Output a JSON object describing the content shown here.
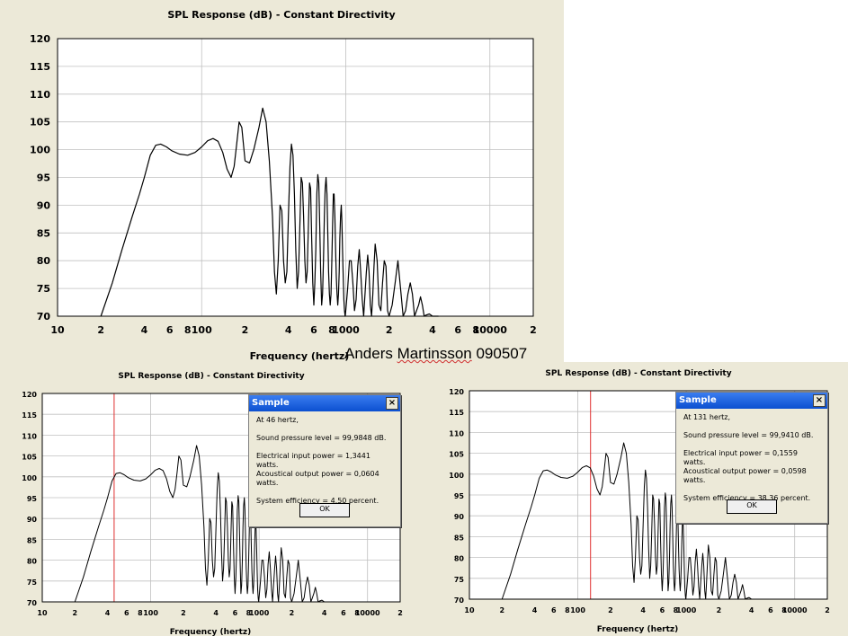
{
  "credit": {
    "prefix": "Anders ",
    "underlined": "Martinsson",
    "suffix": " 090507"
  },
  "chart_data": [
    {
      "type": "line",
      "title": "SPL Response (dB) - Constant Directivity",
      "xlabel": "Frequency (hertz)",
      "ylabel": "",
      "xscale": "log",
      "xlim": [
        10,
        20000
      ],
      "ylim": [
        70,
        120
      ],
      "yticks": [
        70,
        75,
        80,
        85,
        90,
        95,
        100,
        105,
        110,
        115,
        120
      ],
      "xtick_labels": [
        "10",
        "2",
        "4",
        "6",
        "8",
        "100",
        "2",
        "4",
        "6",
        "8",
        "1000",
        "2",
        "4",
        "6",
        "8",
        "10000",
        "2"
      ],
      "xtick_values": [
        10,
        20,
        40,
        60,
        80,
        100,
        200,
        400,
        600,
        800,
        1000,
        2000,
        4000,
        6000,
        8000,
        10000,
        20000
      ],
      "grid": true,
      "series": [
        {
          "color": "#000000",
          "x": [
            20,
            24,
            28,
            33,
            37,
            40,
            44,
            48,
            52,
            57,
            62,
            70,
            80,
            90,
            100,
            110,
            120,
            130,
            140,
            150,
            160,
            168,
            175,
            182,
            190,
            200,
            215,
            230,
            250,
            265,
            280,
            295,
            310,
            320,
            330,
            340,
            350,
            360,
            370,
            380,
            390,
            400,
            410,
            420,
            430,
            440,
            450,
            460,
            470,
            480,
            490,
            500,
            510,
            520,
            530,
            540,
            550,
            560,
            570,
            580,
            590,
            600,
            610,
            620,
            630,
            640,
            650,
            660,
            670,
            680,
            690,
            700,
            710,
            720,
            730,
            740,
            750,
            760,
            770,
            780,
            790,
            800,
            810,
            820,
            830,
            840,
            850,
            860,
            870,
            880,
            890,
            900,
            910,
            920,
            930,
            940,
            950,
            960,
            970,
            980,
            990,
            1000,
            1030,
            1060,
            1090,
            1120,
            1150,
            1180,
            1210,
            1240,
            1270,
            1300,
            1330,
            1360,
            1390,
            1420,
            1450,
            1480,
            1510,
            1540,
            1570,
            1600,
            1650,
            1700,
            1750,
            1800,
            1850,
            1900,
            1950,
            2000,
            2100,
            2200,
            2300,
            2400,
            2500,
            2600,
            2700,
            2800,
            2900,
            3000,
            3100,
            3200,
            3300,
            3400,
            3500,
            3600,
            3800,
            4000,
            4200,
            4400
          ],
          "values": [
            70,
            76,
            82,
            88,
            92,
            95,
            99,
            100.8,
            101,
            100.5,
            99.8,
            99.2,
            99.0,
            99.5,
            100.5,
            101.6,
            102,
            101.5,
            99.5,
            96.5,
            95,
            97,
            101,
            105,
            104,
            98,
            97.6,
            100,
            104,
            107.5,
            105,
            98,
            88,
            78,
            74,
            80,
            90,
            89,
            80,
            76,
            78,
            88,
            97,
            101,
            99,
            92,
            82,
            75,
            78,
            86,
            95,
            94,
            88,
            80,
            76,
            78,
            86,
            94,
            93,
            84,
            76,
            72,
            76,
            82,
            92,
            95.5,
            94,
            86,
            78,
            72,
            74,
            80,
            88,
            93,
            95,
            92,
            85,
            78,
            74,
            72,
            74,
            80,
            86,
            92,
            92,
            88,
            82,
            77,
            74,
            72,
            74,
            78,
            84,
            88,
            90,
            87,
            82,
            77,
            73,
            71,
            70,
            71,
            75,
            80,
            80,
            76,
            71,
            73,
            79,
            82,
            78,
            73,
            70,
            74,
            78,
            81,
            78,
            72,
            70,
            74,
            79,
            83,
            80,
            72,
            71,
            76,
            80,
            79,
            71,
            70,
            72,
            76,
            80,
            75,
            70,
            71,
            74,
            76,
            74,
            70,
            71,
            72,
            73.5,
            72,
            70,
            70.2,
            70.4,
            70,
            70,
            70
          ]
        }
      ]
    },
    {
      "type": "line",
      "title": "SPL Response (dB) - Constant Directivity",
      "xlabel": "Frequency (hertz)",
      "ylabel": "",
      "xscale": "log",
      "xlim": [
        10,
        20000
      ],
      "ylim": [
        70,
        120
      ],
      "yticks": [
        70,
        75,
        80,
        85,
        90,
        95,
        100,
        105,
        110,
        115,
        120
      ],
      "xtick_labels": [
        "10",
        "2",
        "4",
        "6",
        "8",
        "100",
        "2",
        "4",
        "6",
        "8",
        "1000",
        "2",
        "4",
        "6",
        "8",
        "10000",
        "2"
      ],
      "xtick_values": [
        10,
        20,
        40,
        60,
        80,
        100,
        200,
        400,
        600,
        800,
        1000,
        2000,
        4000,
        6000,
        8000,
        10000,
        20000
      ],
      "grid": true,
      "marker_line_x": 46
    },
    {
      "type": "line",
      "title": "SPL Response (dB) - Constant Directivity",
      "xlabel": "Frequency (hertz)",
      "ylabel": "",
      "xscale": "log",
      "xlim": [
        10,
        20000
      ],
      "ylim": [
        70,
        120
      ],
      "yticks": [
        70,
        75,
        80,
        85,
        90,
        95,
        100,
        105,
        110,
        115,
        120
      ],
      "xtick_labels": [
        "10",
        "2",
        "4",
        "6",
        "8",
        "100",
        "2",
        "4",
        "6",
        "8",
        "1000",
        "2",
        "4",
        "6",
        "8",
        "10000",
        "2"
      ],
      "xtick_values": [
        10,
        20,
        40,
        60,
        80,
        100,
        200,
        400,
        600,
        800,
        1000,
        2000,
        4000,
        6000,
        8000,
        10000,
        20000
      ],
      "grid": true,
      "marker_line_x": 131
    }
  ],
  "dialogs": [
    {
      "title": "Sample",
      "close": "×",
      "at": "At 46 hertz,",
      "spl": "Sound pressure level = 99,9848 dB.",
      "elec": "Electrical input power = 1,3441 watts.",
      "acou": "Acoustical output power = 0,0604 watts.",
      "eff": "System efficiency = 4,50 percent.",
      "ok": "OK"
    },
    {
      "title": "Sample",
      "close": "×",
      "at": "At 131 hertz,",
      "spl": "Sound pressure level = 99,9410 dB.",
      "elec": "Electrical input power = 0,1559 watts.",
      "acou": "Acoustical output power = 0,0598 watts.",
      "eff": "System efficiency = 38,36 percent.",
      "ok": "OK"
    }
  ],
  "colors": {
    "panel": "#ece9d8",
    "plot_bg": "#ffffff",
    "grid": "#c0c0c0",
    "marker": "#e03030",
    "trace": "#000000"
  }
}
